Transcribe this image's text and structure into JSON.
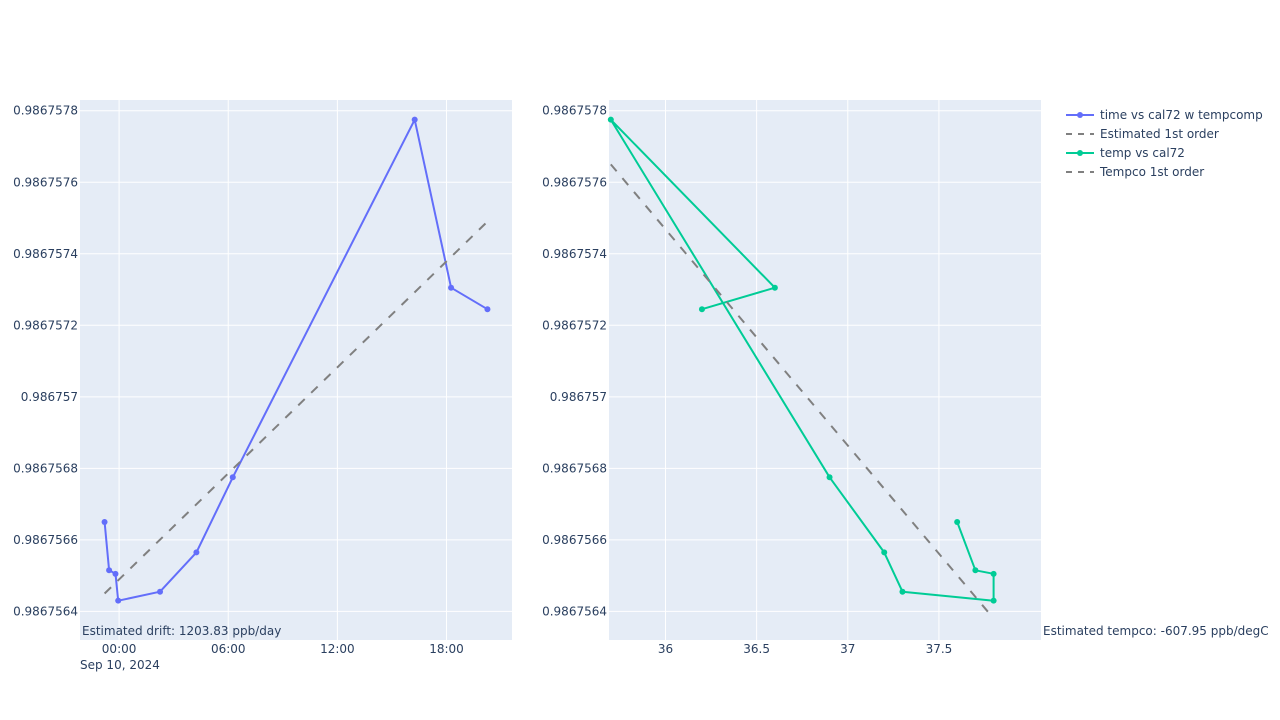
{
  "chart_data": [
    {
      "type": "line",
      "x_type": "date",
      "x_tick_labels": [
        "00:00",
        "06:00",
        "12:00",
        "18:00"
      ],
      "x_tick_values": [
        "2024-09-10 00:00",
        "2024-09-10 06:00",
        "2024-09-10 12:00",
        "2024-09-10 18:00"
      ],
      "x_date_label": "Sep 10, 2024",
      "xlim": [
        "2024-09-09 21:51",
        "2024-09-10 21:36"
      ],
      "ylim": [
        0.98675632,
        0.98675783
      ],
      "y_tick_values": [
        0.9867564,
        0.9867566,
        0.9867568,
        0.986757,
        0.9867572,
        0.9867574,
        0.9867576,
        0.9867578
      ],
      "y_tick_labels": [
        "0.9867564",
        "0.9867566",
        "0.9867568",
        "0.986757",
        "0.9867572",
        "0.9867574",
        "0.9867576",
        "0.9867578"
      ],
      "series": [
        {
          "name": "time vs cal72 w tempcomp",
          "mode": "lines+markers",
          "color": "#636efa",
          "x": [
            "2024-09-09 23:12",
            "2024-09-09 23:27",
            "2024-09-09 23:48",
            "2024-09-09 23:57",
            "2024-09-10 02:15",
            "2024-09-10 04:15",
            "2024-09-10 06:15",
            "2024-09-10 16:15",
            "2024-09-10 18:15",
            "2024-09-10 20:15"
          ],
          "y": [
            0.98675665,
            0.986756515,
            0.986756505,
            0.98675643,
            0.986756455,
            0.986756565,
            0.986756775,
            0.986757775,
            0.986757305,
            0.986757245
          ]
        },
        {
          "name": "Estimated 1st order",
          "mode": "lines",
          "dash": "dash",
          "color": "#808080",
          "x": [
            "2024-09-09 23:12",
            "2024-09-10 20:15"
          ],
          "y": [
            0.98675645,
            0.98675749
          ]
        }
      ],
      "annotation": "Estimated drift:  1203.83 ppb/day"
    },
    {
      "type": "line",
      "xlim": [
        35.69,
        38.06
      ],
      "x_tick_values": [
        36,
        36.5,
        37,
        37.5
      ],
      "x_tick_labels": [
        "36",
        "36.5",
        "37",
        "37.5"
      ],
      "ylim": [
        0.98675632,
        0.98675783
      ],
      "y_tick_values": [
        0.9867564,
        0.9867566,
        0.9867568,
        0.986757,
        0.9867572,
        0.9867574,
        0.9867576,
        0.9867578
      ],
      "y_tick_labels": [
        "0.9867564",
        "0.9867566",
        "0.9867568",
        "0.986757",
        "0.9867572",
        "0.9867574",
        "0.9867576",
        "0.9867578"
      ],
      "series": [
        {
          "name": "temp vs cal72",
          "mode": "lines+markers",
          "color": "#00cc96",
          "x": [
            37.6,
            37.7,
            37.8,
            37.8,
            37.3,
            37.2,
            36.9,
            35.7,
            36.6,
            36.2
          ],
          "y": [
            0.98675665,
            0.986756515,
            0.986756505,
            0.98675643,
            0.986756455,
            0.986756565,
            0.986756775,
            0.986757775,
            0.986757305,
            0.986757245
          ]
        },
        {
          "name": "Tempco 1st order",
          "mode": "lines",
          "dash": "dash",
          "color": "#808080",
          "x": [
            35.7,
            37.8
          ],
          "y": [
            0.98675765,
            0.98675638
          ]
        }
      ],
      "annotation": "Estimated tempco:  -607.95 ppb/degC"
    }
  ],
  "legend": {
    "placement": "top-right",
    "items": [
      {
        "label": "time vs cal72 w tempcomp",
        "color": "#636efa",
        "style": "lines+markers"
      },
      {
        "label": "Estimated 1st order",
        "color": "#808080",
        "style": "dash"
      },
      {
        "label": "temp vs cal72",
        "color": "#00cc96",
        "style": "lines+markers"
      },
      {
        "label": "Tempco 1st order",
        "color": "#808080",
        "style": "dash"
      }
    ]
  },
  "colors": {
    "plot_bg": "#e5ecf6",
    "grid": "#ffffff",
    "text": "#2a3f5f"
  }
}
